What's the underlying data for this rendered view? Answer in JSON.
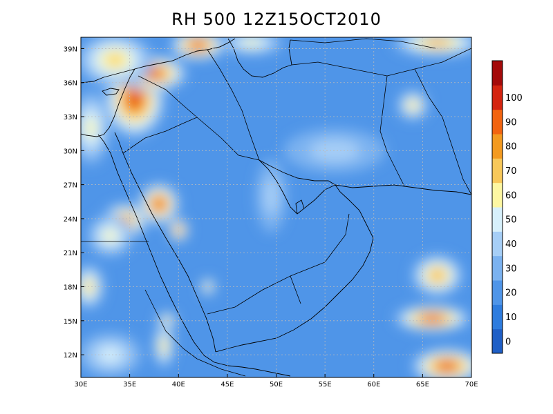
{
  "title": "RH 500 12Z15OCT2010",
  "map": {
    "lon_range": [
      30,
      70
    ],
    "lat_range": [
      10,
      40
    ],
    "x_ticks": [
      {
        "value": 30,
        "label": "30E"
      },
      {
        "value": 35,
        "label": "35E"
      },
      {
        "value": 40,
        "label": "40E"
      },
      {
        "value": 45,
        "label": "45E"
      },
      {
        "value": 50,
        "label": "50E"
      },
      {
        "value": 55,
        "label": "55E"
      },
      {
        "value": 60,
        "label": "60E"
      },
      {
        "value": 65,
        "label": "65E"
      },
      {
        "value": 70,
        "label": "70E"
      }
    ],
    "y_ticks": [
      {
        "value": 12,
        "label": "12N"
      },
      {
        "value": 15,
        "label": "15N"
      },
      {
        "value": 18,
        "label": "18N"
      },
      {
        "value": 21,
        "label": "21N"
      },
      {
        "value": 24,
        "label": "24N"
      },
      {
        "value": 27,
        "label": "27N"
      },
      {
        "value": 30,
        "label": "30N"
      },
      {
        "value": 33,
        "label": "33N"
      },
      {
        "value": 36,
        "label": "36N"
      },
      {
        "value": 39,
        "label": "39N"
      }
    ],
    "grid": "dotted",
    "background_rh": 15,
    "field_blobs": [
      {
        "lon": 35.5,
        "lat": 34.5,
        "rx": 2.4,
        "ry": 2.6,
        "rh": 95
      },
      {
        "lon": 37.5,
        "lat": 36.8,
        "rx": 2.6,
        "ry": 1.2,
        "rh": 90
      },
      {
        "lon": 42.0,
        "lat": 39.3,
        "rx": 2.2,
        "ry": 1.0,
        "rh": 92
      },
      {
        "lon": 33.5,
        "lat": 38.0,
        "rx": 3.0,
        "ry": 1.8,
        "rh": 60
      },
      {
        "lon": 47.5,
        "lat": 39.5,
        "rx": 2.5,
        "ry": 0.8,
        "rh": 55
      },
      {
        "lon": 66.5,
        "lat": 39.5,
        "rx": 3.5,
        "ry": 0.9,
        "rh": 70
      },
      {
        "lon": 31.0,
        "lat": 32.0,
        "rx": 1.5,
        "ry": 2.5,
        "rh": 55
      },
      {
        "lon": 38.0,
        "lat": 25.3,
        "rx": 1.6,
        "ry": 1.4,
        "rh": 92
      },
      {
        "lon": 34.5,
        "lat": 23.8,
        "rx": 1.8,
        "ry": 1.2,
        "rh": 88
      },
      {
        "lon": 40.0,
        "lat": 23.0,
        "rx": 0.8,
        "ry": 0.8,
        "rh": 80
      },
      {
        "lon": 33.0,
        "lat": 22.5,
        "rx": 1.8,
        "ry": 1.4,
        "rh": 55
      },
      {
        "lon": 30.8,
        "lat": 18.0,
        "rx": 1.2,
        "ry": 1.5,
        "rh": 60
      },
      {
        "lon": 38.8,
        "lat": 15.0,
        "rx": 0.8,
        "ry": 0.6,
        "rh": 65
      },
      {
        "lon": 38.5,
        "lat": 12.8,
        "rx": 0.8,
        "ry": 1.5,
        "rh": 60
      },
      {
        "lon": 43.0,
        "lat": 18.0,
        "rx": 0.6,
        "ry": 0.6,
        "rh": 60
      },
      {
        "lon": 66.5,
        "lat": 19.0,
        "rx": 2.0,
        "ry": 1.4,
        "rh": 70
      },
      {
        "lon": 66.0,
        "lat": 15.2,
        "rx": 3.0,
        "ry": 0.9,
        "rh": 92
      },
      {
        "lon": 67.5,
        "lat": 11.0,
        "rx": 2.8,
        "ry": 1.2,
        "rh": 92
      },
      {
        "lon": 64.0,
        "lat": 34.0,
        "rx": 1.2,
        "ry": 1.0,
        "rh": 60
      },
      {
        "lon": 49.5,
        "lat": 26.0,
        "rx": 1.2,
        "ry": 2.5,
        "rh": 30
      },
      {
        "lon": 56.0,
        "lat": 30.0,
        "rx": 4.0,
        "ry": 1.5,
        "rh": 30
      },
      {
        "lon": 33.0,
        "lat": 12.0,
        "rx": 2.5,
        "ry": 1.5,
        "rh": 40
      }
    ]
  },
  "colorbar": {
    "colors": [
      "#1f5fc6",
      "#2e7cde",
      "#4f95e8",
      "#7bb2f0",
      "#a6cef6",
      "#d7f0fb",
      "#fdf7a2",
      "#f8c85a",
      "#f39a20",
      "#f26410",
      "#d42410",
      "#a40a0a"
    ],
    "labels": [
      "0",
      "10",
      "20",
      "30",
      "40",
      "50",
      "60",
      "70",
      "80",
      "90",
      "100"
    ]
  }
}
